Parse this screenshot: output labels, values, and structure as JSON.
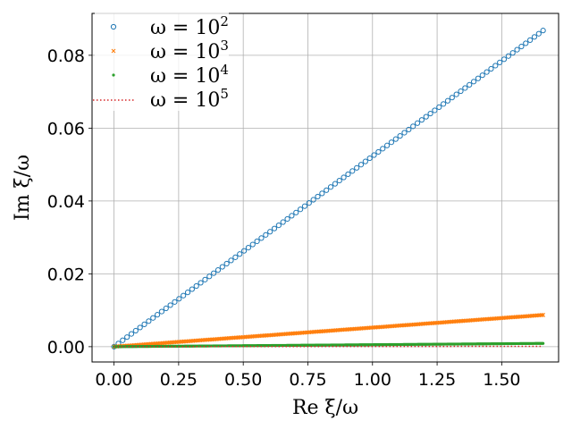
{
  "chart_data": {
    "type": "scatter",
    "xlabel": "Re ξ/ω",
    "ylabel": "Im ξ/ω",
    "xlim": [
      -0.085,
      1.72
    ],
    "ylim": [
      -0.0042,
      0.0915
    ],
    "xticks": [
      0.0,
      0.25,
      0.5,
      0.75,
      1.0,
      1.25,
      1.5
    ],
    "xtick_labels": [
      "0.00",
      "0.25",
      "0.50",
      "0.75",
      "1.00",
      "1.25",
      "1.50"
    ],
    "yticks": [
      0.0,
      0.02,
      0.04,
      0.06,
      0.08
    ],
    "ytick_labels": [
      "0.00",
      "0.02",
      "0.04",
      "0.06",
      "0.08"
    ],
    "grid": true,
    "legend_position": "top-left",
    "series": [
      {
        "name": "ω = 10^2",
        "legend_base": "ω = 10",
        "legend_exp": "2",
        "color": "#1f77b4",
        "marker": "open-circle",
        "x_range": [
          0.0,
          1.66
        ],
        "y_range": [
          0.0,
          0.0868
        ],
        "num_points": 100
      },
      {
        "name": "ω = 10^3",
        "legend_base": "ω = 10",
        "legend_exp": "3",
        "color": "#ff7f0e",
        "marker": "x",
        "x_range": [
          0.0,
          1.66
        ],
        "y_range": [
          0.0,
          0.0087
        ],
        "num_points": 300
      },
      {
        "name": "ω = 10^4",
        "legend_base": "ω = 10",
        "legend_exp": "4",
        "color": "#2ca02c",
        "marker": "dot",
        "x_range": [
          0.0,
          1.66
        ],
        "y_range": [
          0.0,
          0.0009
        ],
        "num_points": 450
      },
      {
        "name": "ω = 10^5",
        "legend_base": "ω = 10",
        "legend_exp": "5",
        "color": "#d62728",
        "marker": "dotted-line",
        "x_range": [
          0.0,
          1.66
        ],
        "y_range": [
          0.0,
          0.0001
        ],
        "num_points": 2
      }
    ]
  }
}
